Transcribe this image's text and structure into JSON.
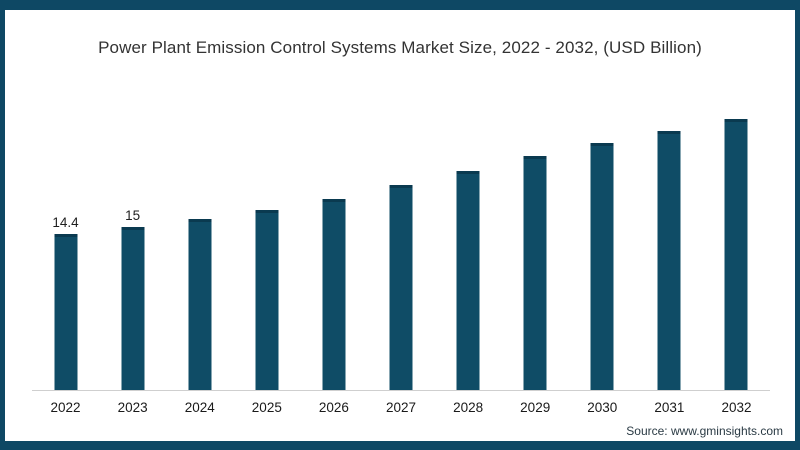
{
  "title": "Power Plant Emission Control Systems Market Size, 2022 - 2032, (USD Billion)",
  "source": "Source: www.gminsights.com",
  "frame": {
    "border_color": "#0e4864",
    "background": "#ffffff"
  },
  "chart_data": {
    "type": "bar",
    "title": "Power Plant Emission Control Systems Market Size, 2022 - 2032, (USD Billion)",
    "categories": [
      "2022",
      "2023",
      "2024",
      "2025",
      "2026",
      "2027",
      "2028",
      "2029",
      "2030",
      "2031",
      "2032"
    ],
    "values": [
      14.4,
      15,
      15.8,
      16.6,
      17.6,
      18.9,
      20.2,
      21.6,
      22.8,
      23.9,
      25.0
    ],
    "data_labels": [
      "14.4",
      "15",
      "",
      "",
      "",
      "",
      "",
      "",
      "",
      "",
      ""
    ],
    "xlabel": "",
    "ylabel": "",
    "ylim": [
      0,
      26
    ],
    "grid": false,
    "legend": "none",
    "bar_color": "#0f4c66",
    "bar_top_color": "#0a3a50",
    "axis_line_color": "#cfcfcf",
    "units": "USD Billion"
  }
}
